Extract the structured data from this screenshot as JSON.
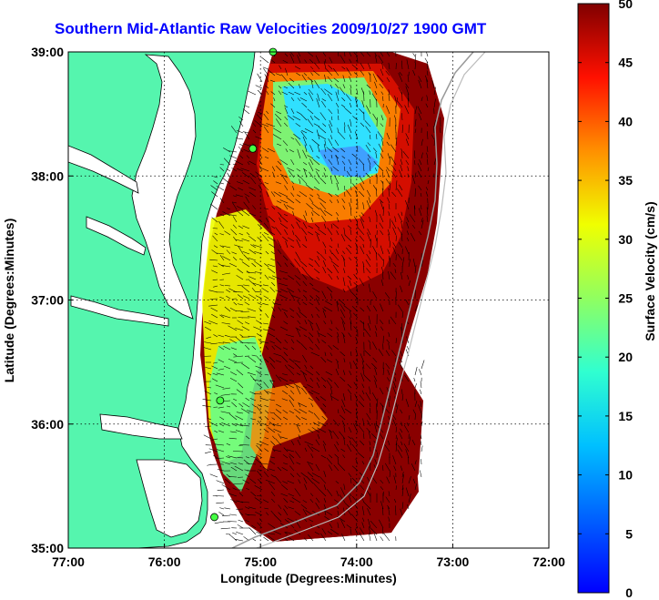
{
  "chart_data": {
    "type": "heatmap",
    "title": "Southern Mid-Atlantic Raw Velocities 2009/10/27 1900 GMT",
    "xlabel": "Longitude (Degrees:Minutes)",
    "ylabel": "Latitude (Degrees:Minutes)",
    "colorbar_label": "Surface Velocity (cm/s)",
    "x_ticks": [
      "77:00",
      "76:00",
      "75:00",
      "74:00",
      "73:00",
      "72:00"
    ],
    "y_ticks": [
      "39:00",
      "38:00",
      "37:00",
      "36:00",
      "35:00"
    ],
    "colorbar_ticks": [
      "50",
      "45",
      "40",
      "35",
      "30",
      "25",
      "20",
      "15",
      "10",
      "5",
      "0"
    ],
    "xlim": [
      -77,
      -72
    ],
    "ylim": [
      35,
      39
    ],
    "clim": [
      0,
      50
    ],
    "grid": true,
    "colors": {
      "land": "#55f5ae",
      "coast": "#000000",
      "title": "#0000ff",
      "grid": "#000000"
    },
    "colormap": "jet",
    "stations": [
      {
        "lon": -74.87,
        "lat": 39.0
      },
      {
        "lon": -75.08,
        "lat": 38.22
      },
      {
        "lon": -75.42,
        "lat": 36.19
      },
      {
        "lon": -75.48,
        "lat": 35.25
      }
    ]
  }
}
